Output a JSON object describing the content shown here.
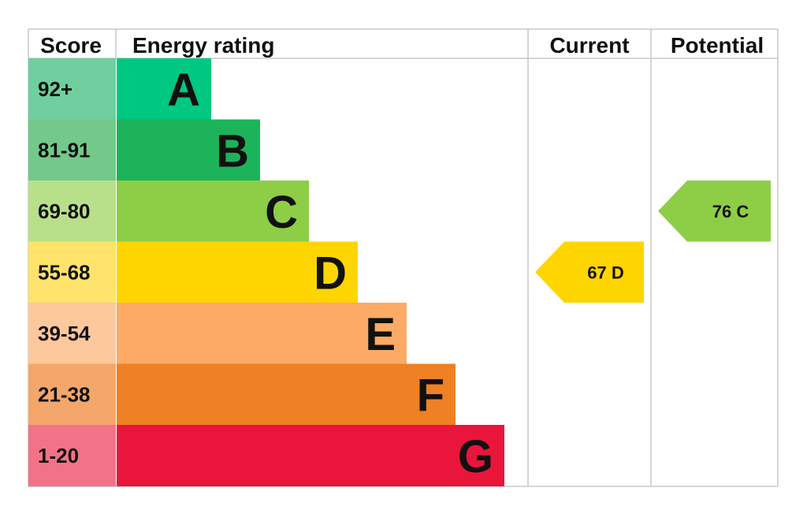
{
  "chart_data": {
    "type": "bar",
    "title": "",
    "headers": {
      "score": "Score",
      "rating": "Energy rating",
      "current": "Current",
      "potential": "Potential"
    },
    "bands": [
      {
        "score": "92+",
        "letter": "A",
        "color": "#00c781",
        "score_bg": "#6fcf9f"
      },
      {
        "score": "81-91",
        "letter": "B",
        "color": "#1db35a",
        "score_bg": "#73c98a"
      },
      {
        "score": "69-80",
        "letter": "C",
        "color": "#8dce46",
        "score_bg": "#b8e08a"
      },
      {
        "score": "55-68",
        "letter": "D",
        "color": "#ffd500",
        "score_bg": "#ffe36a"
      },
      {
        "score": "39-54",
        "letter": "E",
        "color": "#fcaa65",
        "score_bg": "#fdc89b"
      },
      {
        "score": "21-38",
        "letter": "F",
        "color": "#ef8023",
        "score_bg": "#f3a76a"
      },
      {
        "score": "1-20",
        "letter": "G",
        "color": "#e9153b",
        "score_bg": "#f27387"
      }
    ],
    "current": {
      "value": 67,
      "band": "D",
      "label": "67  D",
      "color": "#ffd500"
    },
    "potential": {
      "value": 76,
      "band": "C",
      "label": "76  C",
      "color": "#8dce46"
    }
  }
}
